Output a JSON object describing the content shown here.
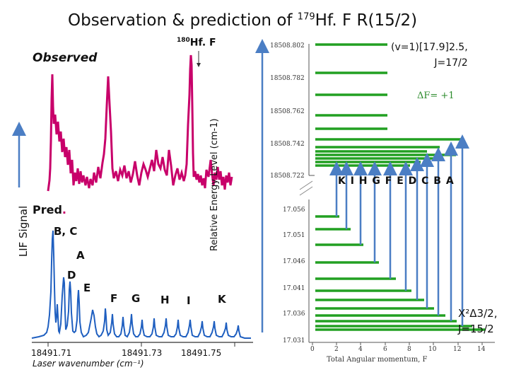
{
  "title": {
    "main": "Observation & prediction of ",
    "isotope_sup": "179",
    "rest": "Hf. F R(15/2)"
  },
  "observed_label": "Observed",
  "hf180_label": {
    "sup": "180",
    "text": "Hf. F"
  },
  "lif_signal_label": "LIF Signal",
  "pred_label": "Pred",
  "peak_labels": [
    "B, C",
    "A",
    "D",
    "E",
    "F",
    "G",
    "H",
    "I",
    "K"
  ],
  "x_axis": {
    "ticks": [
      "18491.71",
      "18491.73",
      "18491.75"
    ],
    "label": "Laser wavenumber (cm⁻¹)"
  },
  "energy_axis": {
    "label": "Relative Energy Level (cm-1)",
    "upper_ticks": [
      "18508.802",
      "18508.782",
      "18508.762",
      "18508.742",
      "18508.722"
    ],
    "lower_ticks": [
      "17.056",
      "17.051",
      "17.046",
      "17.041",
      "17.036",
      "17.031"
    ]
  },
  "upper_state": {
    "line1": "(v=1)[17.9]2.5,",
    "line2": "J=17/2"
  },
  "lower_state": {
    "line1": "X²Δ3/2,",
    "line2": "J=15/2"
  },
  "delta_f": "ΔF= +1",
  "transition_letters": "K I H G F E D C B A",
  "f_axis": {
    "ticks": [
      "0",
      "2",
      "4",
      "6",
      "8",
      "10",
      "12",
      "14"
    ],
    "label": "Total Angular momentum, F"
  },
  "colors": {
    "spectrum_obs": "#c8006a",
    "spectrum_pred": "#1f5fc0",
    "levels": "#22a022",
    "arrows": "#4b7ec4"
  }
}
